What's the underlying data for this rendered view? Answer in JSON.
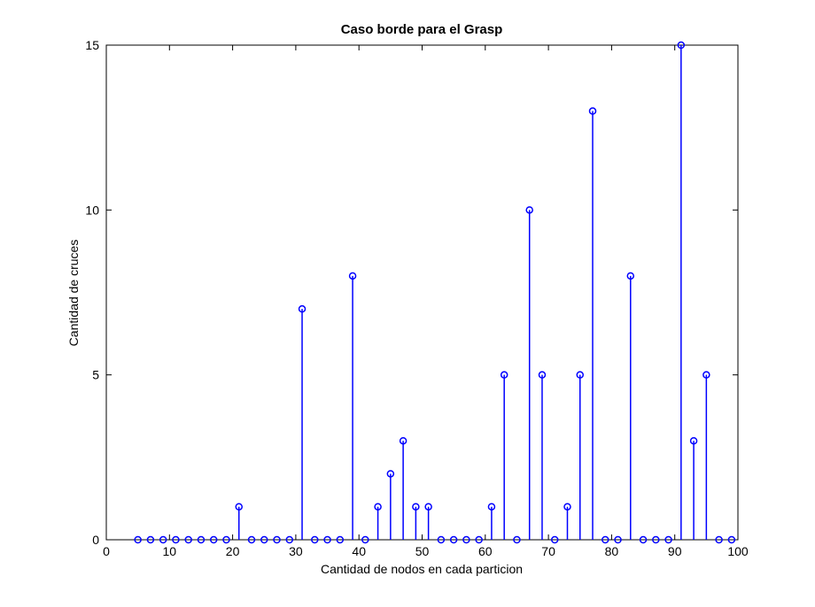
{
  "chart_data": {
    "type": "stem",
    "title": "Caso borde para el Grasp",
    "xlabel": "Cantidad de nodos en cada particion",
    "ylabel": "Cantidad de cruces",
    "xlim": [
      0,
      100
    ],
    "ylim": [
      0,
      15
    ],
    "xticks": [
      0,
      10,
      20,
      30,
      40,
      50,
      60,
      70,
      80,
      90,
      100
    ],
    "yticks": [
      0,
      5,
      10,
      15
    ],
    "grid": false,
    "legend": "none",
    "marker": "circle-open",
    "color": "#0000ff",
    "x": [
      5,
      7,
      9,
      11,
      13,
      15,
      17,
      19,
      21,
      23,
      25,
      27,
      29,
      31,
      33,
      35,
      37,
      39,
      41,
      43,
      45,
      47,
      49,
      51,
      53,
      55,
      57,
      59,
      61,
      63,
      65,
      67,
      69,
      71,
      73,
      75,
      77,
      79,
      81,
      83,
      85,
      87,
      89,
      91,
      93,
      95,
      97,
      99
    ],
    "y": [
      0,
      0,
      0,
      0,
      0,
      0,
      0,
      0,
      1,
      0,
      0,
      0,
      0,
      7,
      0,
      0,
      0,
      8,
      0,
      1,
      2,
      3,
      1,
      1,
      0,
      0,
      0,
      0,
      1,
      5,
      0,
      10,
      5,
      0,
      1,
      5,
      13,
      0,
      0,
      8,
      0,
      0,
      0,
      15,
      3,
      5,
      0,
      0
    ]
  }
}
